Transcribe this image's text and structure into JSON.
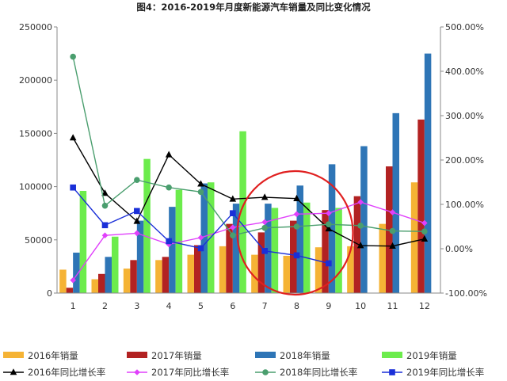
{
  "chart_data": {
    "type": "bar",
    "title": "图4：2016-2019年月度新能源汽车销量及同比变化情况",
    "categories": [
      "1",
      "2",
      "3",
      "4",
      "5",
      "6",
      "7",
      "8",
      "9",
      "10",
      "11",
      "12"
    ],
    "y_left": {
      "min": 0,
      "max": 250000,
      "ticks": [
        "0",
        "50000",
        "100000",
        "150000",
        "200000",
        "250000"
      ]
    },
    "y_right": {
      "min": -100,
      "max": 500,
      "ticks": [
        "-100.00%",
        "0.00%",
        "100.00%",
        "200.00%",
        "300.00%",
        "400.00%",
        "500.00%"
      ]
    },
    "bar_series": [
      {
        "name": "2016年销量",
        "color": "#f5b335",
        "values": [
          22000,
          13000,
          23000,
          31000,
          36000,
          44000,
          36000,
          35000,
          43000,
          44000,
          65000,
          104000
        ]
      },
      {
        "name": "2017年销量",
        "color": "#b22222",
        "values": [
          5000,
          18000,
          31000,
          34000,
          45000,
          65000,
          57000,
          68000,
          78000,
          91000,
          119000,
          163000
        ]
      },
      {
        "name": "2018年销量",
        "color": "#2e75b6",
        "values": [
          38000,
          34000,
          68000,
          81000,
          103000,
          84000,
          84000,
          101000,
          121000,
          138000,
          169000,
          225000
        ]
      },
      {
        "name": "2019年销量",
        "color": "#6cec4c",
        "values": [
          96000,
          53000,
          126000,
          97000,
          104000,
          152000,
          80000,
          85000,
          80000,
          null,
          null,
          null
        ]
      }
    ],
    "line_series": [
      {
        "name": "2016年同比增长率",
        "color": "#000000",
        "marker": "triangle",
        "values": [
          250,
          125,
          62,
          212,
          146,
          112,
          116,
          113,
          45,
          7,
          6,
          22
        ]
      },
      {
        "name": "2017年同比增长率",
        "color": "#e040fb",
        "marker": "diamond",
        "values": [
          -71,
          30,
          35,
          10,
          25,
          48,
          60,
          78,
          80,
          105,
          82,
          58
        ]
      },
      {
        "name": "2018年同比增长率",
        "color": "#4a9e6e",
        "marker": "circle",
        "values": [
          433,
          97,
          155,
          138,
          128,
          30,
          47,
          50,
          55,
          52,
          40,
          39
        ]
      },
      {
        "name": "2019年同比增长率",
        "color": "#1a2fd8",
        "marker": "square",
        "values": [
          138,
          53,
          85,
          17,
          1,
          80,
          -5,
          -15,
          -33,
          null,
          null,
          null
        ]
      }
    ],
    "annotation": "red circle highlighting months 7–9",
    "legend_position": "bottom"
  }
}
